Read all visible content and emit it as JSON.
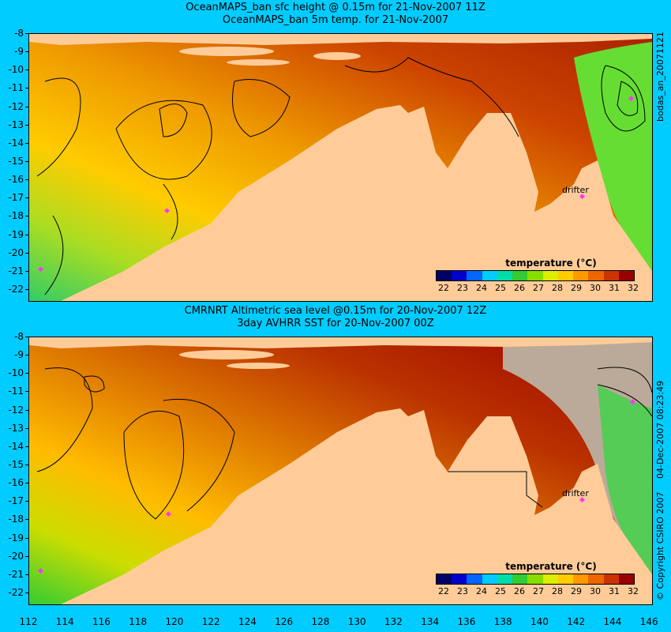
{
  "titles": {
    "panel1_line1": "OceanMAPS_ban sfc height @ 0.15m for 21-Nov-2007 11Z",
    "panel1_line2": "OceanMAPS_ban 5m temp. for 21-Nov-2007",
    "panel2_line1": "CMRNRT Altimetric sea level  @0.15m  for 20-Nov-2007 12Z",
    "panel2_line2": "3day AVHRR SST for 20-Nov-2007 00Z"
  },
  "lat_ticks": [
    "-8",
    "-9",
    "-10",
    "-11",
    "-12",
    "-13",
    "-14",
    "-15",
    "-16",
    "-17",
    "-18",
    "-19",
    "-20",
    "-21",
    "-22"
  ],
  "lon_ticks": [
    "112",
    "114",
    "116",
    "118",
    "120",
    "122",
    "124",
    "126",
    "128",
    "130",
    "132",
    "134",
    "136",
    "138",
    "140",
    "142",
    "144",
    "146"
  ],
  "colorbar": {
    "title": "temperature (°C)",
    "labels": [
      "22",
      "23",
      "24",
      "25",
      "26",
      "27",
      "28",
      "29",
      "30",
      "31",
      "32"
    ],
    "colors": [
      "#000066",
      "#0000cc",
      "#0066ff",
      "#00ccff",
      "#00ddaa",
      "#33cc33",
      "#88dd00",
      "#ddee00",
      "#ffcc00",
      "#ff9900",
      "#ee6600",
      "#cc3300",
      "#990000"
    ]
  },
  "drifter_label": "drifter",
  "side_labels": {
    "top": "bodas_an_20071121",
    "bottom_date": "04-Dec-2007 08:23:49",
    "copyright": "© Copyright CSIRO 2007"
  },
  "colors": {
    "background": "#00ccff",
    "land": "#ffcc99",
    "drifter": "#ff33ff"
  }
}
